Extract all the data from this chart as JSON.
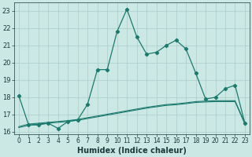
{
  "xlabel": "Humidex (Indice chaleur)",
  "x_data": [
    0,
    1,
    2,
    3,
    4,
    5,
    6,
    7,
    8,
    9,
    10,
    11,
    12,
    13,
    14,
    15,
    16,
    17,
    18,
    19,
    20,
    21,
    22,
    23
  ],
  "y_main": [
    18.1,
    16.4,
    16.4,
    16.5,
    16.2,
    16.6,
    16.7,
    17.6,
    19.6,
    19.6,
    21.8,
    23.1,
    21.5,
    20.5,
    20.6,
    21.0,
    21.3,
    20.8,
    19.4,
    17.9,
    18.0,
    18.5,
    18.7,
    16.5
  ],
  "y_trend1": [
    16.3,
    16.45,
    16.5,
    16.55,
    16.6,
    16.65,
    16.72,
    16.82,
    16.92,
    17.02,
    17.12,
    17.22,
    17.32,
    17.42,
    17.5,
    17.58,
    17.62,
    17.68,
    17.75,
    17.78,
    17.8,
    17.8,
    17.8,
    16.5
  ],
  "y_trend2": [
    16.25,
    16.38,
    16.45,
    16.5,
    16.55,
    16.6,
    16.67,
    16.77,
    16.87,
    16.97,
    17.07,
    17.17,
    17.27,
    17.37,
    17.45,
    17.53,
    17.57,
    17.63,
    17.7,
    17.73,
    17.75,
    17.75,
    17.75,
    16.45
  ],
  "line_color": "#1a7a6e",
  "bg_color": "#cce8e4",
  "grid_color": "#aaccca",
  "xlim": [
    -0.5,
    23.5
  ],
  "ylim": [
    15.85,
    23.5
  ],
  "yticks": [
    16,
    17,
    18,
    19,
    20,
    21,
    22,
    23
  ],
  "xticks": [
    0,
    1,
    2,
    3,
    4,
    5,
    6,
    7,
    8,
    9,
    10,
    11,
    12,
    13,
    14,
    15,
    16,
    17,
    18,
    19,
    20,
    21,
    22,
    23
  ],
  "xlabel_fontsize": 7,
  "tick_fontsize": 6
}
